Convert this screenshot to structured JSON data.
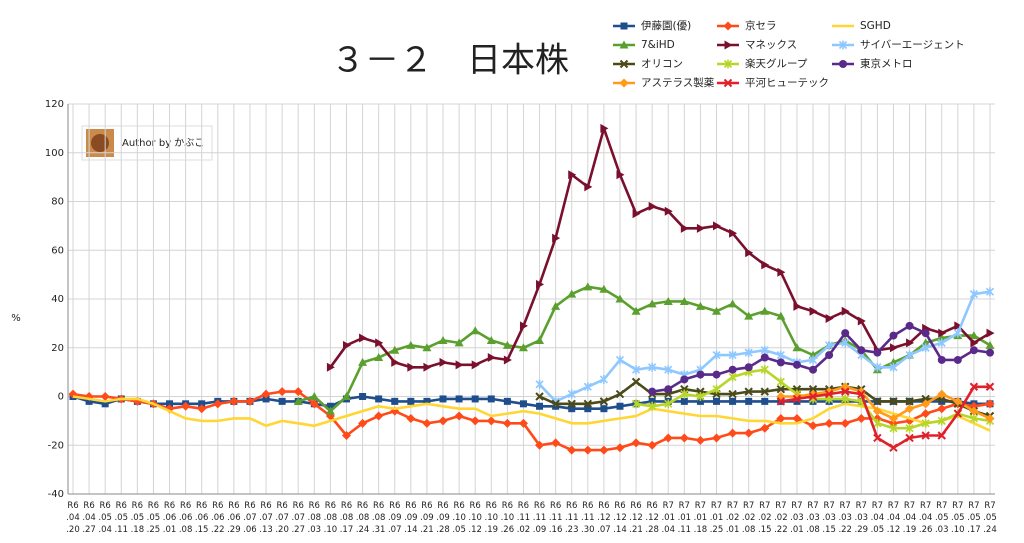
{
  "chart_data": {
    "type": "line",
    "title": "３－２　日本株",
    "y_label": "%",
    "annotation": "Author by かぶこ",
    "grid": true,
    "categories": [
      "R6.04.20",
      "R6.04.27",
      "R6.05.04",
      "R6.05.11",
      "R6.05.18",
      "R6.05.25",
      "R6.06.01",
      "R6.06.08",
      "R6.06.15",
      "R6.06.22",
      "R6.06.29",
      "R6.07.06",
      "R6.07.13",
      "R6.07.20",
      "R6.07.27",
      "R6.08.03",
      "R6.08.10",
      "R6.08.17",
      "R6.08.24",
      "R6.08.31",
      "R6.09.07",
      "R6.09.14",
      "R6.09.21",
      "R6.09.28",
      "R6.10.05",
      "R6.10.12",
      "R6.10.19",
      "R6.10.26",
      "R6.11.02",
      "R6.11.09",
      "R6.11.16",
      "R6.11.23",
      "R6.11.30",
      "R6.12.07",
      "R6.12.14",
      "R6.12.21",
      "R6.12.28",
      "R7.01.04",
      "R7.01.11",
      "R7.01.18",
      "R7.01.25",
      "R7.02.01",
      "R7.02.08",
      "R7.02.15",
      "R7.02.22",
      "R7.03.01",
      "R7.03.08",
      "R7.03.15",
      "R7.03.22",
      "R7.03.29",
      "R7.04.05",
      "R7.04.12",
      "R7.04.19",
      "R7.04.26",
      "R7.05.03",
      "R7.05.10",
      "R7.05.17",
      "R7.05.24"
    ],
    "ylim": [
      -40,
      120
    ],
    "yticks": [
      -40,
      -20,
      0,
      20,
      40,
      60,
      80,
      100,
      120
    ],
    "series": [
      {
        "name": "伊藤園(優)",
        "color": "#1f4e8c",
        "marker": "square",
        "values": [
          0,
          -2,
          -3,
          -1,
          -2,
          -3,
          -3,
          -3,
          -3,
          -2,
          -2,
          -2,
          -1,
          -2,
          -2,
          -3,
          -4,
          -1,
          0,
          -1,
          -2,
          -2,
          -2,
          -1,
          -1,
          -1,
          -1,
          -2,
          -3,
          -4,
          -4,
          -5,
          -5,
          -5,
          -4,
          -3,
          -2,
          -2,
          -2,
          -2,
          -2,
          -2,
          -2,
          -2,
          -2,
          -2,
          -2,
          -2,
          -2,
          -2,
          -2,
          -2,
          -2,
          -2,
          -2,
          -2,
          -3,
          -3
        ]
      },
      {
        "name": "京セラ",
        "color": "#ff4a1a",
        "marker": "diamond",
        "values": [
          1,
          0,
          0,
          -1,
          -2,
          -3,
          -5,
          -4,
          -5,
          -3,
          -2,
          -2,
          1,
          2,
          2,
          -3,
          -8,
          -16,
          -11,
          -8,
          -6,
          -9,
          -11,
          -10,
          -8,
          -10,
          -10,
          -11,
          -11,
          -20,
          -19,
          -22,
          -22,
          -22,
          -21,
          -19,
          -20,
          -17,
          -17,
          -18,
          -17,
          -15,
          -15,
          -13,
          -9,
          -9,
          -12,
          -11,
          -11,
          -9,
          -9,
          -11,
          -10,
          -7,
          -5,
          -3,
          -4,
          -3
        ]
      },
      {
        "name": "SGHD",
        "color": "#ffd633",
        "marker": "none",
        "values": [
          0,
          -1,
          -2,
          -1,
          -1,
          -3,
          -6,
          -9,
          -10,
          -10,
          -9,
          -9,
          -12,
          -10,
          -11,
          -12,
          -10,
          -8,
          -6,
          -4,
          -5,
          -4,
          -3,
          -4,
          -5,
          -5,
          -8,
          -7,
          -6,
          -7,
          -9,
          -11,
          -11,
          -10,
          -9,
          -8,
          -5,
          -6,
          -7,
          -8,
          -8,
          -9,
          -10,
          -10,
          -11,
          -11,
          -9,
          -5,
          -3,
          -4,
          -5,
          -7,
          -9,
          -11,
          -10,
          -8,
          -11,
          -14
        ]
      },
      {
        "name": "7&iHD",
        "color": "#5ba02e",
        "marker": "triangle",
        "values": [
          null,
          null,
          null,
          null,
          null,
          null,
          null,
          null,
          null,
          null,
          null,
          null,
          null,
          null,
          -2,
          0,
          -6,
          0,
          14,
          16,
          19,
          21,
          20,
          23,
          22,
          27,
          23,
          21,
          20,
          23,
          37,
          42,
          45,
          44,
          40,
          35,
          38,
          39,
          39,
          37,
          35,
          38,
          33,
          35,
          33,
          20,
          17,
          21,
          23,
          19,
          11,
          14,
          17,
          22,
          24,
          25,
          25,
          21
        ]
      },
      {
        "name": "マネックス",
        "color": "#7a0f2e",
        "marker": "tri-right",
        "values": [
          null,
          null,
          null,
          null,
          null,
          null,
          null,
          null,
          null,
          null,
          null,
          null,
          null,
          null,
          null,
          null,
          12,
          21,
          24,
          22,
          14,
          12,
          12,
          14,
          13,
          13,
          16,
          15,
          29,
          46,
          65,
          91,
          86,
          110,
          91,
          75,
          78,
          76,
          69,
          69,
          70,
          67,
          59,
          54,
          51,
          37,
          35,
          32,
          35,
          31,
          19,
          20,
          22,
          28,
          26,
          29,
          22,
          26
        ]
      },
      {
        "name": "サイバーエージェント",
        "color": "#8fc8ff",
        "marker": "star",
        "values": [
          null,
          null,
          null,
          null,
          null,
          null,
          null,
          null,
          null,
          null,
          null,
          null,
          null,
          null,
          null,
          null,
          null,
          null,
          null,
          null,
          null,
          null,
          null,
          null,
          null,
          null,
          null,
          null,
          null,
          5,
          -2,
          1,
          4,
          7,
          15,
          11,
          12,
          11,
          9,
          11,
          17,
          17,
          18,
          19,
          17,
          14,
          15,
          21,
          22,
          17,
          12,
          12,
          17,
          20,
          22,
          26,
          42,
          43
        ]
      },
      {
        "name": "オリコン",
        "color": "#4a4a1a",
        "marker": "x",
        "values": [
          null,
          null,
          null,
          null,
          null,
          null,
          null,
          null,
          null,
          null,
          null,
          null,
          null,
          null,
          null,
          null,
          null,
          null,
          null,
          null,
          null,
          null,
          null,
          null,
          null,
          null,
          null,
          null,
          null,
          0,
          -3,
          -3,
          -3,
          -2,
          1,
          6,
          1,
          1,
          3,
          2,
          1,
          1,
          2,
          2,
          3,
          3,
          3,
          3,
          4,
          3,
          -2,
          -2,
          -2,
          -1,
          -1,
          -3,
          -6,
          -8
        ]
      },
      {
        "name": "楽天グループ",
        "color": "#b8d62a",
        "marker": "star",
        "values": [
          null,
          null,
          null,
          null,
          null,
          null,
          null,
          null,
          null,
          null,
          null,
          null,
          null,
          null,
          null,
          null,
          null,
          null,
          null,
          null,
          null,
          null,
          null,
          null,
          null,
          null,
          null,
          null,
          null,
          null,
          null,
          null,
          null,
          null,
          null,
          -3,
          -4,
          -3,
          1,
          0,
          3,
          8,
          10,
          11,
          6,
          1,
          -1,
          -1,
          -1,
          -2,
          -11,
          -13,
          -13,
          -11,
          -10,
          -7,
          -9,
          -10
        ]
      },
      {
        "name": "東京メトロ",
        "color": "#5a2a8a",
        "marker": "circle",
        "values": [
          null,
          null,
          null,
          null,
          null,
          null,
          null,
          null,
          null,
          null,
          null,
          null,
          null,
          null,
          null,
          null,
          null,
          null,
          null,
          null,
          null,
          null,
          null,
          null,
          null,
          null,
          null,
          null,
          null,
          null,
          null,
          null,
          null,
          null,
          null,
          null,
          2,
          3,
          7,
          9,
          9,
          11,
          12,
          16,
          14,
          13,
          11,
          17,
          26,
          19,
          18,
          25,
          29,
          26,
          15,
          15,
          19,
          18
        ]
      },
      {
        "name": "アステラス製薬",
        "color": "#ff9a1a",
        "marker": "diamond",
        "values": [
          null,
          null,
          null,
          null,
          null,
          null,
          null,
          null,
          null,
          null,
          null,
          null,
          null,
          null,
          null,
          null,
          null,
          null,
          null,
          null,
          null,
          null,
          null,
          null,
          null,
          null,
          null,
          null,
          null,
          null,
          null,
          null,
          null,
          null,
          null,
          null,
          null,
          null,
          null,
          null,
          null,
          null,
          null,
          null,
          0,
          0,
          1,
          2,
          4,
          2,
          -6,
          -9,
          -5,
          -3,
          1,
          -2,
          -6,
          -9
        ]
      },
      {
        "name": "平河ヒューテック",
        "color": "#e0202a",
        "marker": "x",
        "values": [
          null,
          null,
          null,
          null,
          null,
          null,
          null,
          null,
          null,
          null,
          null,
          null,
          null,
          null,
          null,
          null,
          null,
          null,
          null,
          null,
          null,
          null,
          null,
          null,
          null,
          null,
          null,
          null,
          null,
          null,
          null,
          null,
          null,
          null,
          null,
          null,
          null,
          null,
          null,
          null,
          null,
          null,
          null,
          null,
          -2,
          -1,
          0,
          1,
          2,
          1,
          -17,
          -21,
          -17,
          -16,
          -16,
          -7,
          4,
          4
        ]
      }
    ]
  }
}
